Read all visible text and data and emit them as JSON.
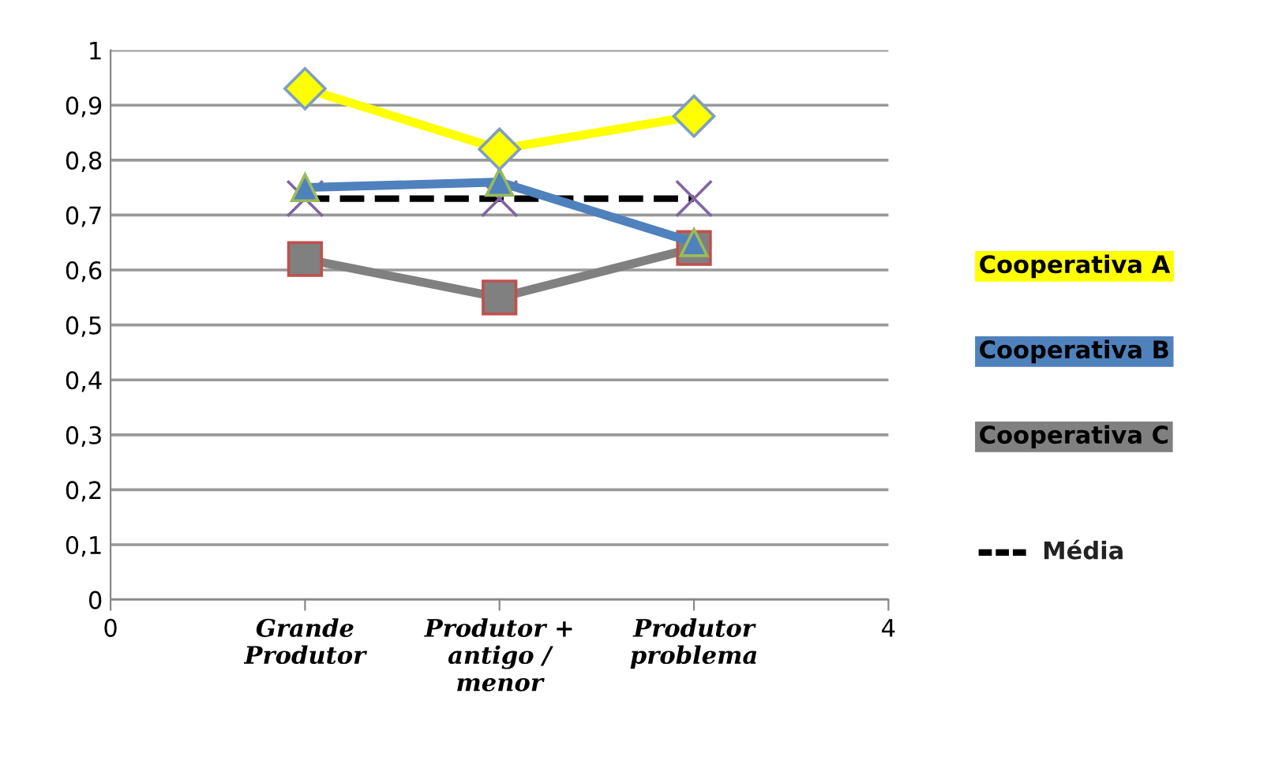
{
  "chart_data": {
    "type": "line",
    "xlim": [
      0,
      4
    ],
    "xticks": [
      0,
      {
        "value": 1,
        "label": "Grande\nProdutor"
      },
      {
        "value": 2,
        "label": "Produtor +\nantigo /\nmenor"
      },
      {
        "value": 3,
        "label": "Produtor\nproblema"
      },
      4
    ],
    "ylim": [
      0,
      1
    ],
    "yticks": [
      0,
      {
        "value": 0.1,
        "label": "0,1"
      },
      {
        "value": 0.2,
        "label": "0,2"
      },
      {
        "value": 0.3,
        "label": "0,3"
      },
      {
        "value": 0.4,
        "label": "0,4"
      },
      {
        "value": 0.5,
        "label": "0,5"
      },
      {
        "value": 0.6,
        "label": "0,6"
      },
      {
        "value": 0.7,
        "label": "0,7"
      },
      {
        "value": 0.8,
        "label": "0,8"
      },
      {
        "value": 0.9,
        "label": "0,9"
      },
      1
    ],
    "grid": "y",
    "legend": "right",
    "series": [
      {
        "name": "Cooperativa A",
        "color": "#ffff00",
        "x": [
          1,
          2,
          3
        ],
        "values": [
          0.93,
          0.82,
          0.88
        ],
        "marker": "diamond",
        "line_style": "solid"
      },
      {
        "name": "Cooperativa B",
        "color": "#4f81bd",
        "x": [
          1,
          2,
          3
        ],
        "values": [
          0.75,
          0.76,
          0.65
        ],
        "marker": "triangle",
        "line_style": "solid"
      },
      {
        "name": "Cooperativa C",
        "color": "#808080",
        "x": [
          1,
          2,
          3
        ],
        "values": [
          0.62,
          0.55,
          0.64
        ],
        "marker": "square",
        "line_style": "solid"
      },
      {
        "name": "Média",
        "color": "#000000",
        "x": [
          1,
          2,
          3
        ],
        "values": [
          0.73,
          0.73,
          0.73
        ],
        "marker": "cross",
        "line_style": "dashed"
      }
    ]
  }
}
